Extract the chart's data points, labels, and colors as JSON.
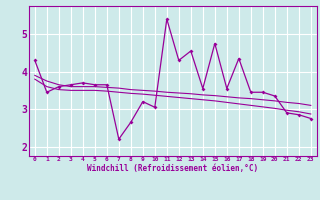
{
  "xlabel": "Windchill (Refroidissement éolien,°C)",
  "background_color": "#ceeaea",
  "grid_color": "#ffffff",
  "line_color": "#990099",
  "x": [
    0,
    1,
    2,
    3,
    4,
    5,
    6,
    7,
    8,
    9,
    10,
    11,
    12,
    13,
    14,
    15,
    16,
    17,
    18,
    19,
    20,
    21,
    22,
    23
  ],
  "y_main": [
    4.3,
    3.45,
    3.6,
    3.65,
    3.7,
    3.65,
    3.65,
    2.2,
    2.65,
    3.2,
    3.05,
    5.4,
    4.3,
    4.55,
    3.55,
    4.75,
    3.55,
    4.35,
    3.45,
    3.45,
    3.35,
    2.9,
    2.85,
    2.75
  ],
  "y_trend1": [
    3.9,
    3.75,
    3.65,
    3.6,
    3.6,
    3.6,
    3.58,
    3.56,
    3.52,
    3.5,
    3.48,
    3.45,
    3.43,
    3.41,
    3.38,
    3.36,
    3.33,
    3.3,
    3.28,
    3.25,
    3.22,
    3.18,
    3.15,
    3.1
  ],
  "y_trend2": [
    3.8,
    3.6,
    3.52,
    3.5,
    3.5,
    3.5,
    3.48,
    3.45,
    3.42,
    3.4,
    3.37,
    3.34,
    3.31,
    3.28,
    3.25,
    3.22,
    3.18,
    3.14,
    3.1,
    3.06,
    3.02,
    2.97,
    2.93,
    2.87
  ],
  "ylim": [
    1.75,
    5.75
  ],
  "yticks": [
    2,
    3,
    4,
    5
  ],
  "xticks": [
    0,
    1,
    2,
    3,
    4,
    5,
    6,
    7,
    8,
    9,
    10,
    11,
    12,
    13,
    14,
    15,
    16,
    17,
    18,
    19,
    20,
    21,
    22,
    23
  ]
}
